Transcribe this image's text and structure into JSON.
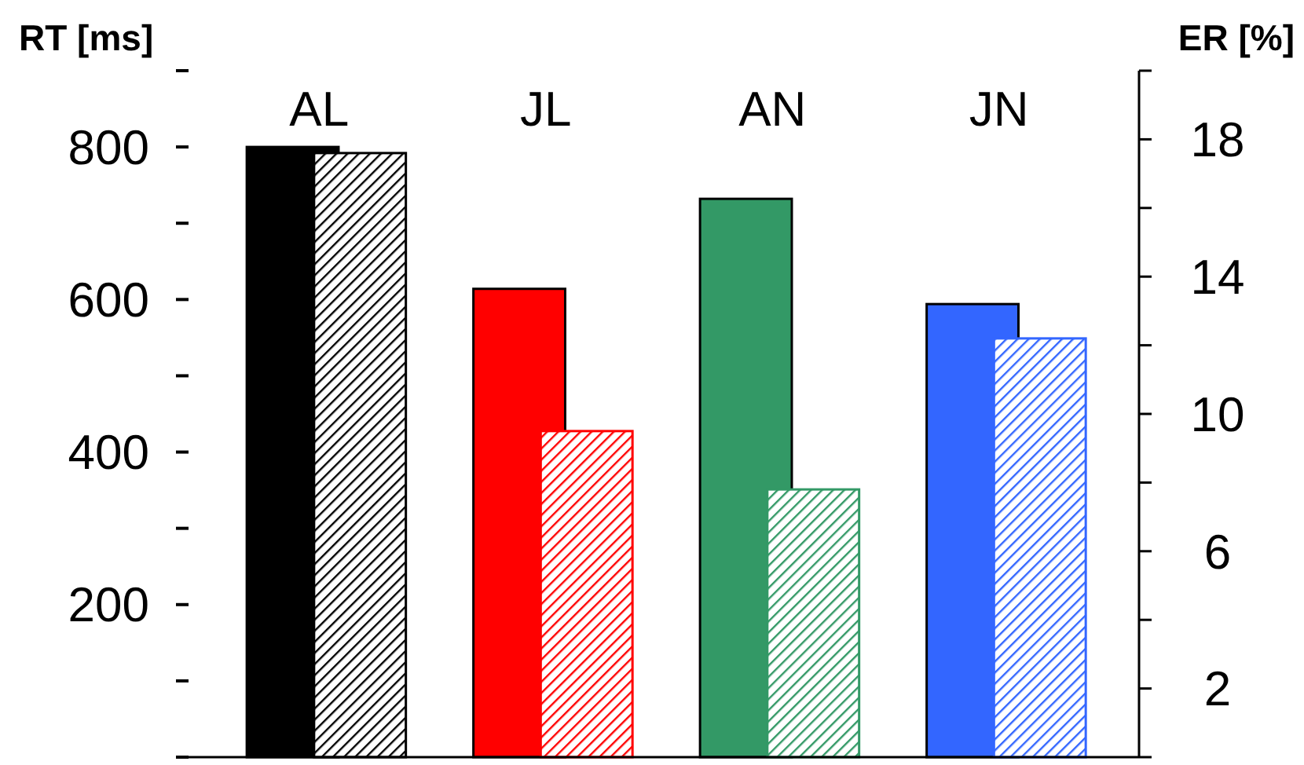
{
  "chart_data": {
    "type": "bar",
    "categories": [
      "AL",
      "JL",
      "AN",
      "JN"
    ],
    "ylabel": "RT [ms]",
    "y2label": "ER [%]",
    "ylim": [
      0,
      900
    ],
    "yticks": [
      {
        "value": 0,
        "label": null
      },
      {
        "value": 100,
        "label": null
      },
      200,
      {
        "value": 300,
        "label": null
      },
      400,
      {
        "value": 500,
        "label": null
      },
      600,
      {
        "value": 700,
        "label": null
      },
      800,
      {
        "value": 900,
        "label": null
      }
    ],
    "y2lim": [
      0,
      20
    ],
    "y2ticks": [
      {
        "value": 0,
        "label": null
      },
      2,
      {
        "value": 4,
        "label": null
      },
      6,
      {
        "value": 8,
        "label": null
      },
      10,
      {
        "value": 12,
        "label": null
      },
      14,
      {
        "value": 16,
        "label": null
      },
      18,
      {
        "value": 20,
        "label": null
      }
    ],
    "series": [
      {
        "colors": [
          "#000000",
          "#ff0000",
          "#339966",
          "#3366ff"
        ],
        "values": [
          800,
          614,
          732,
          594
        ]
      },
      {
        "axis": "y2",
        "colors": [
          "#000000",
          "#ff0000",
          "#339966",
          "#3366ff"
        ],
        "values": [
          17.6,
          9.5,
          7.8,
          12.2
        ]
      }
    ],
    "grid": false
  }
}
